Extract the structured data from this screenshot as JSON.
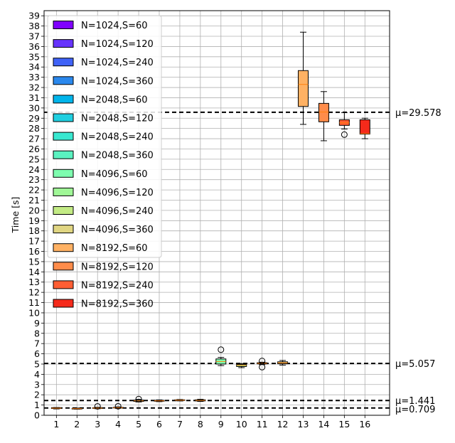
{
  "chart_data": {
    "type": "box",
    "ylabel": "Time [s]",
    "xlabel": "",
    "ylim": [
      0,
      39.5
    ],
    "xlim": [
      0.4,
      17.2
    ],
    "yticks": [
      0,
      1,
      2,
      3,
      4,
      5,
      6,
      7,
      8,
      9,
      10,
      11,
      12,
      13,
      14,
      15,
      16,
      17,
      18,
      19,
      20,
      21,
      22,
      23,
      24,
      25,
      26,
      27,
      28,
      29,
      30,
      31,
      32,
      33,
      34,
      35,
      36,
      37,
      38,
      39
    ],
    "categories": [
      "1",
      "2",
      "3",
      "4",
      "5",
      "6",
      "7",
      "8",
      "9",
      "10",
      "11",
      "12",
      "13",
      "14",
      "15",
      "16"
    ],
    "grid": true,
    "legend_position": "upper-left",
    "series": [
      {
        "name": "N=1024,S=60",
        "color": "#7f00ff",
        "box": {
          "whislo": 0.62,
          "q1": 0.66,
          "med": 0.69,
          "q3": 0.73,
          "whishi": 0.76
        },
        "fliers": []
      },
      {
        "name": "N=1024,S=120",
        "color": "#6633fc",
        "box": {
          "whislo": 0.6,
          "q1": 0.63,
          "med": 0.65,
          "q3": 0.68,
          "whishi": 0.71
        },
        "fliers": []
      },
      {
        "name": "N=1024,S=240",
        "color": "#3f62f7",
        "box": {
          "whislo": 0.64,
          "q1": 0.67,
          "med": 0.7,
          "q3": 0.74,
          "whishi": 0.78
        },
        "fliers": [
          0.87
        ]
      },
      {
        "name": "N=1024,S=360",
        "color": "#2a88ed",
        "box": {
          "whislo": 0.68,
          "q1": 0.71,
          "med": 0.74,
          "q3": 0.78,
          "whishi": 0.82
        },
        "fliers": [
          0.88
        ]
      },
      {
        "name": "N=2048,S=60",
        "color": "#00b5eb",
        "box": {
          "whislo": 1.3,
          "q1": 1.35,
          "med": 1.41,
          "q3": 1.48,
          "whishi": 1.55
        },
        "fliers": [
          1.58
        ]
      },
      {
        "name": "N=2048,S=120",
        "color": "#1fcfe0",
        "box": {
          "whislo": 1.33,
          "q1": 1.37,
          "med": 1.41,
          "q3": 1.46,
          "whishi": 1.5
        },
        "fliers": []
      },
      {
        "name": "N=2048,S=240",
        "color": "#38e8d0",
        "box": {
          "whislo": 1.4,
          "q1": 1.44,
          "med": 1.47,
          "q3": 1.51,
          "whishi": 1.54
        },
        "fliers": []
      },
      {
        "name": "N=2048,S=360",
        "color": "#5af2c0",
        "box": {
          "whislo": 1.35,
          "q1": 1.4,
          "med": 1.45,
          "q3": 1.51,
          "whishi": 1.56
        },
        "fliers": []
      },
      {
        "name": "N=4096,S=60",
        "color": "#7efdaf",
        "box": {
          "whislo": 4.85,
          "q1": 5.0,
          "med": 5.25,
          "q3": 5.5,
          "whishi": 5.65
        },
        "fliers": [
          6.4
        ]
      },
      {
        "name": "N=4096,S=120",
        "color": "#a0f797",
        "box": {
          "whislo": 4.65,
          "q1": 4.76,
          "med": 4.88,
          "q3": 4.97,
          "whishi": 5.05
        },
        "fliers": []
      },
      {
        "name": "N=4096,S=240",
        "color": "#c3eb85",
        "box": {
          "whislo": 4.95,
          "q1": 5.02,
          "med": 5.07,
          "q3": 5.13,
          "whishi": 5.18
        },
        "fliers": [
          4.7,
          5.3
        ]
      },
      {
        "name": "N=4096,S=360",
        "color": "#e0d582",
        "box": {
          "whislo": 4.9,
          "q1": 5.03,
          "med": 5.12,
          "q3": 5.22,
          "whishi": 5.35
        },
        "fliers": []
      },
      {
        "name": "N=8192,S=60",
        "color": "#ffb163",
        "box": {
          "whislo": 28.4,
          "q1": 30.15,
          "med": 32.3,
          "q3": 33.65,
          "whishi": 37.4
        },
        "fliers": []
      },
      {
        "name": "N=8192,S=120",
        "color": "#ff8c4a",
        "box": {
          "whislo": 26.8,
          "q1": 28.65,
          "med": 29.6,
          "q3": 30.45,
          "whishi": 31.6
        },
        "fliers": []
      },
      {
        "name": "N=8192,S=240",
        "color": "#ff5e33",
        "box": {
          "whislo": 27.95,
          "q1": 28.3,
          "med": 28.55,
          "q3": 28.85,
          "whishi": 29.55
        },
        "fliers": [
          27.4
        ]
      },
      {
        "name": "N=8192,S=360",
        "color": "#f52a1b",
        "box": {
          "whislo": 27.0,
          "q1": 27.45,
          "med": 27.5,
          "q3": 28.85,
          "whishi": 29.0
        },
        "fliers": []
      }
    ],
    "mean_lines": [
      {
        "value": 29.578,
        "label": "μ=29.578"
      },
      {
        "value": 5.057,
        "label": "μ=5.057"
      },
      {
        "value": 1.441,
        "label": "μ=1.441"
      },
      {
        "value": 0.709,
        "label": "μ=0.709"
      }
    ],
    "style": {
      "grid_color": "#b0b0b0",
      "median_color": "#ff7f0e",
      "axis_color": "#000000"
    }
  }
}
